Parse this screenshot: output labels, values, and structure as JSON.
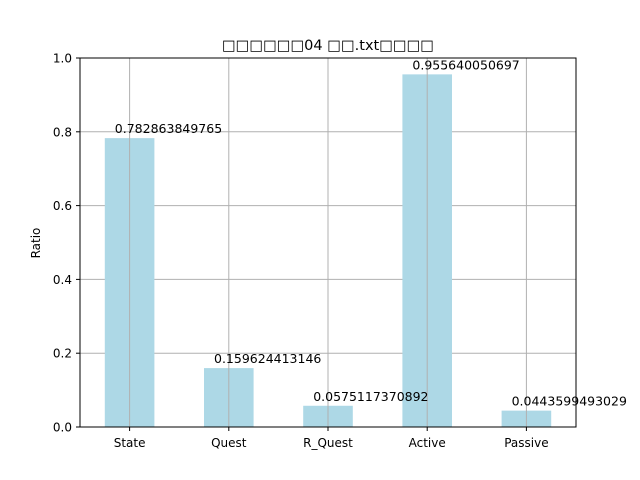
{
  "chart_data": {
    "type": "bar",
    "title": "□□□□□□04 □□.txt□□□□",
    "xlabel": "",
    "ylabel": "Ratio",
    "categories": [
      "State",
      "Quest",
      "R_Quest",
      "Active",
      "Passive"
    ],
    "values": [
      0.782863849765,
      0.159624413146,
      0.0575117370892,
      0.955640050697,
      0.0443599493029
    ],
    "data_labels": [
      "0.782863849765",
      "0.159624413146",
      "0.0575117370892",
      "0.955640050697",
      "0.0443599493029"
    ],
    "ylim": [
      0,
      1.0
    ],
    "yticks": [
      0.0,
      0.2,
      0.4,
      0.6,
      0.8,
      1.0
    ],
    "ytick_labels": [
      "0.0",
      "0.2",
      "0.4",
      "0.6",
      "0.8",
      "1.0"
    ],
    "grid": true,
    "bar_color": "#add8e6",
    "grid_color": "#b0b0b0"
  }
}
